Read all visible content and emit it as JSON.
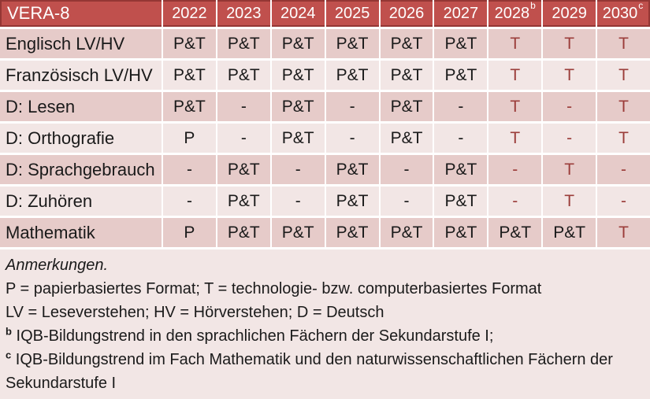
{
  "colors": {
    "header_bg": "#C0504D",
    "header_border": "#943634",
    "row_dark": "#E6CBC9",
    "row_light": "#F2E6E5",
    "accent_text": "#9B3D3A",
    "text": "#1A1A1A"
  },
  "table": {
    "title": "VERA-8",
    "columns": [
      {
        "label": "2022",
        "sup": ""
      },
      {
        "label": "2023",
        "sup": ""
      },
      {
        "label": "2024",
        "sup": ""
      },
      {
        "label": "2025",
        "sup": ""
      },
      {
        "label": "2026",
        "sup": ""
      },
      {
        "label": "2027",
        "sup": ""
      },
      {
        "label": "2028",
        "sup": "b"
      },
      {
        "label": "2029",
        "sup": ""
      },
      {
        "label": "2030",
        "sup": "c"
      }
    ],
    "rows": [
      {
        "label": "Englisch LV/HV",
        "cells": [
          {
            "text": "P&T",
            "highlight": false
          },
          {
            "text": "P&T",
            "highlight": false
          },
          {
            "text": "P&T",
            "highlight": false
          },
          {
            "text": "P&T",
            "highlight": false
          },
          {
            "text": "P&T",
            "highlight": false
          },
          {
            "text": "P&T",
            "highlight": false
          },
          {
            "text": "T",
            "highlight": true
          },
          {
            "text": "T",
            "highlight": true
          },
          {
            "text": "T",
            "highlight": true
          }
        ]
      },
      {
        "label": "Französisch LV/HV",
        "cells": [
          {
            "text": "P&T",
            "highlight": false
          },
          {
            "text": "P&T",
            "highlight": false
          },
          {
            "text": "P&T",
            "highlight": false
          },
          {
            "text": "P&T",
            "highlight": false
          },
          {
            "text": "P&T",
            "highlight": false
          },
          {
            "text": "P&T",
            "highlight": false
          },
          {
            "text": "T",
            "highlight": true
          },
          {
            "text": "T",
            "highlight": true
          },
          {
            "text": "T",
            "highlight": true
          }
        ]
      },
      {
        "label": "D: Lesen",
        "cells": [
          {
            "text": "P&T",
            "highlight": false
          },
          {
            "text": "-",
            "highlight": false
          },
          {
            "text": "P&T",
            "highlight": false
          },
          {
            "text": "-",
            "highlight": false
          },
          {
            "text": "P&T",
            "highlight": false
          },
          {
            "text": "-",
            "highlight": false
          },
          {
            "text": "T",
            "highlight": true
          },
          {
            "text": "-",
            "highlight": true
          },
          {
            "text": "T",
            "highlight": true
          }
        ]
      },
      {
        "label": "D: Orthografie",
        "cells": [
          {
            "text": "P",
            "highlight": false
          },
          {
            "text": "-",
            "highlight": false
          },
          {
            "text": "P&T",
            "highlight": false
          },
          {
            "text": "-",
            "highlight": false
          },
          {
            "text": "P&T",
            "highlight": false
          },
          {
            "text": "-",
            "highlight": false
          },
          {
            "text": "T",
            "highlight": true
          },
          {
            "text": "-",
            "highlight": true
          },
          {
            "text": "T",
            "highlight": true
          }
        ]
      },
      {
        "label": "D: Sprachgebrauch",
        "cells": [
          {
            "text": "-",
            "highlight": false
          },
          {
            "text": "P&T",
            "highlight": false
          },
          {
            "text": "-",
            "highlight": false
          },
          {
            "text": "P&T",
            "highlight": false
          },
          {
            "text": "-",
            "highlight": false
          },
          {
            "text": "P&T",
            "highlight": false
          },
          {
            "text": "-",
            "highlight": true
          },
          {
            "text": "T",
            "highlight": true
          },
          {
            "text": "-",
            "highlight": true
          }
        ]
      },
      {
        "label": "D: Zuhören",
        "cells": [
          {
            "text": "-",
            "highlight": false
          },
          {
            "text": "P&T",
            "highlight": false
          },
          {
            "text": "-",
            "highlight": false
          },
          {
            "text": "P&T",
            "highlight": false
          },
          {
            "text": "-",
            "highlight": false
          },
          {
            "text": "P&T",
            "highlight": false
          },
          {
            "text": "-",
            "highlight": true
          },
          {
            "text": "T",
            "highlight": true
          },
          {
            "text": "-",
            "highlight": true
          }
        ]
      },
      {
        "label": "Mathematik",
        "cells": [
          {
            "text": "P",
            "highlight": false
          },
          {
            "text": "P&T",
            "highlight": false
          },
          {
            "text": "P&T",
            "highlight": false
          },
          {
            "text": "P&T",
            "highlight": false
          },
          {
            "text": "P&T",
            "highlight": false
          },
          {
            "text": "P&T",
            "highlight": false
          },
          {
            "text": "P&T",
            "highlight": false
          },
          {
            "text": "P&T",
            "highlight": false
          },
          {
            "text": "T",
            "highlight": true
          }
        ]
      }
    ]
  },
  "notes": {
    "heading": "Anmerkungen.",
    "lines": [
      {
        "sup": "",
        "text": "P = papierbasiertes Format; T = technologie- bzw. computerbasiertes Format"
      },
      {
        "sup": "",
        "text": "LV = Leseverstehen; HV = Hörverstehen; D = Deutsch"
      },
      {
        "sup": "b",
        "text": "IQB-Bildungstrend in den sprachlichen Fächern der Sekundarstufe I;"
      },
      {
        "sup": "c",
        "text": "IQB-Bildungstrend im Fach Mathematik und den naturwissenschaftlichen Fächern der Sekundarstufe I"
      }
    ]
  }
}
